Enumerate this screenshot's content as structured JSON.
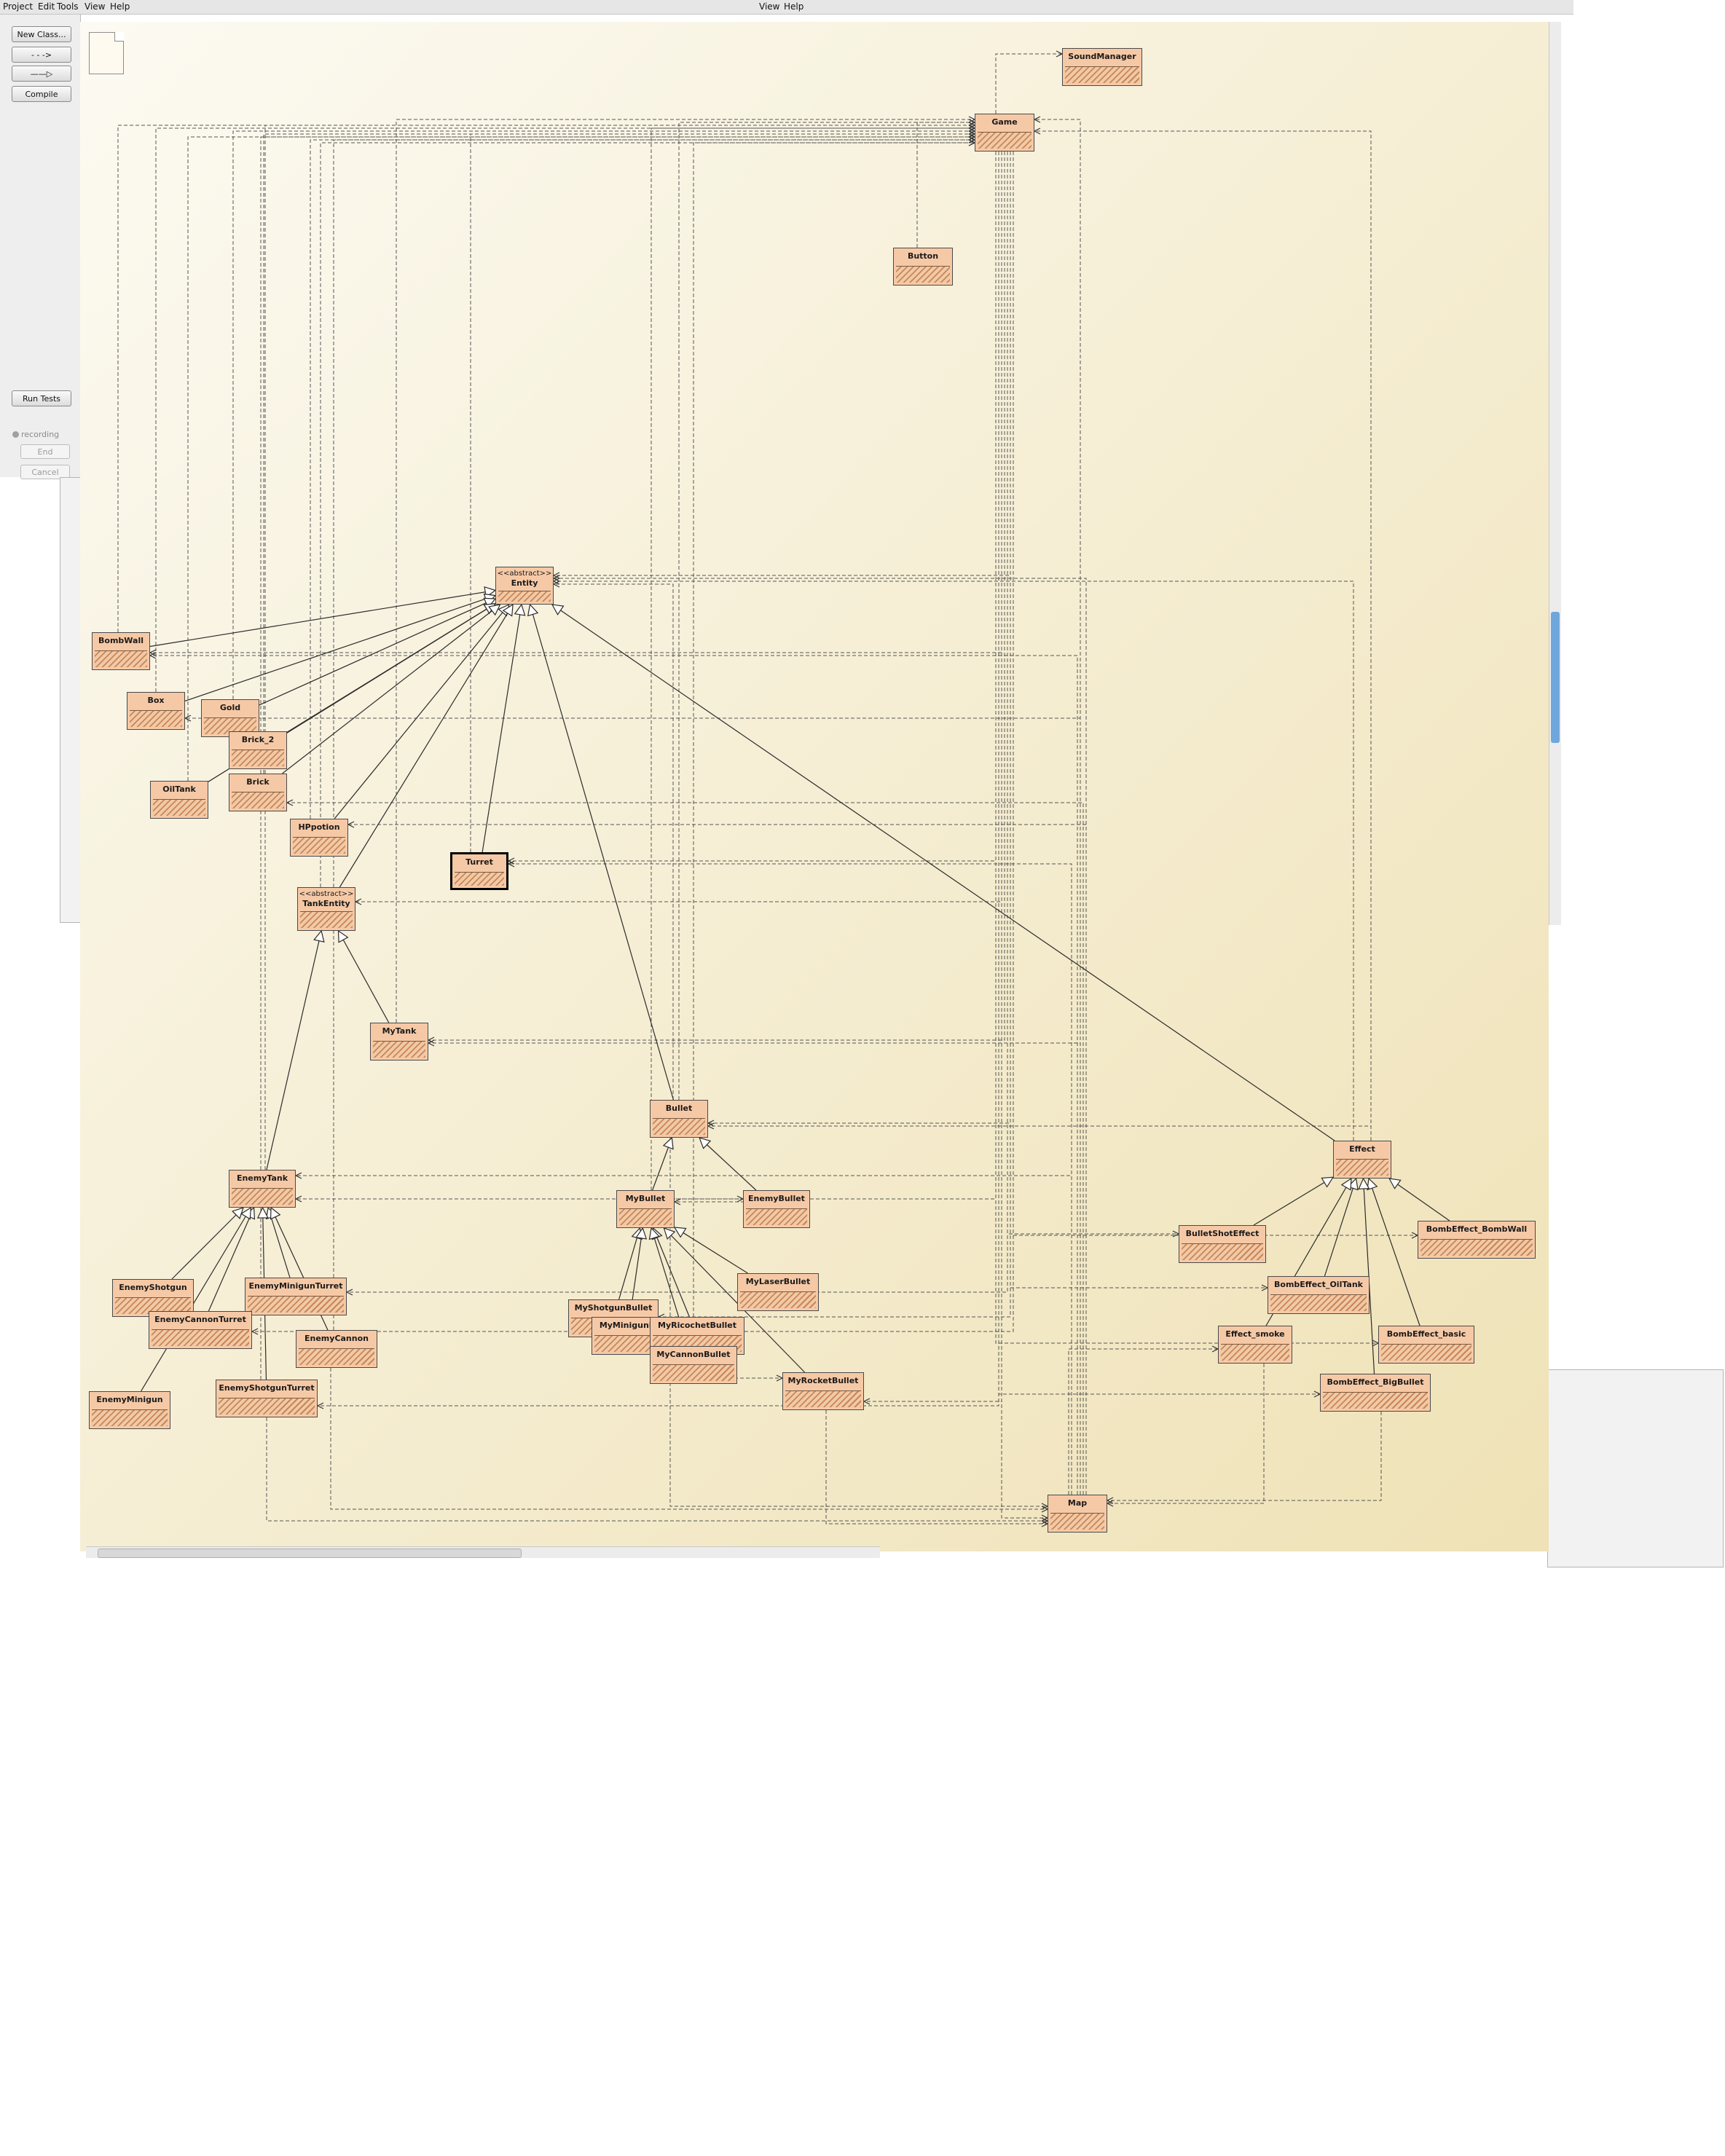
{
  "menu": {
    "items": [
      "Project",
      "Edit",
      "Tools",
      "View",
      "Help"
    ],
    "secondary_items": [
      "View",
      "Help"
    ]
  },
  "toolbar": {
    "new_class": "New Class...",
    "dependency_arrow": "- - ->",
    "inheritance_arrow": "——▷",
    "compile": "Compile",
    "run_tests": "Run Tests",
    "recording": "recording",
    "end": "End",
    "cancel": "Cancel"
  },
  "colors": {
    "class_fill": "#f6c9a6",
    "class_hatch": "#c8865a",
    "canvas_light": "#fbf8ee",
    "canvas_dark": "#efe2b5",
    "panel": "#eeeeee",
    "scrollbar_thumb": "#6fa7dd"
  },
  "classes": [
    {
      "id": "soundmanager",
      "name": "SoundManager"
    },
    {
      "id": "game",
      "name": "Game"
    },
    {
      "id": "button",
      "name": "Button"
    },
    {
      "id": "entity",
      "name": "Entity",
      "stereotype": "<<abstract>>"
    },
    {
      "id": "bombwall",
      "name": "BombWall"
    },
    {
      "id": "box",
      "name": "Box"
    },
    {
      "id": "gold",
      "name": "Gold"
    },
    {
      "id": "brick2",
      "name": "Brick_2"
    },
    {
      "id": "oiltank",
      "name": "OilTank"
    },
    {
      "id": "brick",
      "name": "Brick"
    },
    {
      "id": "hppotion",
      "name": "HPpotion"
    },
    {
      "id": "turret",
      "name": "Turret"
    },
    {
      "id": "tankentity",
      "name": "TankEntity",
      "stereotype": "<<abstract>>"
    },
    {
      "id": "mytank",
      "name": "MyTank"
    },
    {
      "id": "bullet",
      "name": "Bullet"
    },
    {
      "id": "enemytank",
      "name": "EnemyTank"
    },
    {
      "id": "mybullet",
      "name": "MyBullet"
    },
    {
      "id": "enemybullet",
      "name": "EnemyBullet"
    },
    {
      "id": "effect",
      "name": "Effect"
    },
    {
      "id": "bulletshoteffect",
      "name": "BulletShotEffect"
    },
    {
      "id": "bombeffect_bombwall",
      "name": "BombEffect_BombWall"
    },
    {
      "id": "enemyshotgun",
      "name": "EnemyShotgun"
    },
    {
      "id": "enemyminiguntruret",
      "name": "EnemyMinigunTurret"
    },
    {
      "id": "enemycannonturret",
      "name": "EnemyCannonTurret"
    },
    {
      "id": "enemycannon",
      "name": "EnemyCannon"
    },
    {
      "id": "myshotgunbullet",
      "name": "MyShotgunBullet"
    },
    {
      "id": "myminigunbullet",
      "name": "MyMinigunB"
    },
    {
      "id": "myricochetbullet",
      "name": "MyRicochetBullet"
    },
    {
      "id": "mylaserbullet",
      "name": "MyLaserBullet"
    },
    {
      "id": "mycannonbullet",
      "name": "MyCannonBullet"
    },
    {
      "id": "bombeffect_oiltank",
      "name": "BombEffect_OilTank"
    },
    {
      "id": "effect_smoke",
      "name": "Effect_smoke"
    },
    {
      "id": "bombeffect_basic",
      "name": "BombEffect_basic"
    },
    {
      "id": "enemyminigun",
      "name": "EnemyMinigun"
    },
    {
      "id": "enemyshotgunturret",
      "name": "EnemyShotgunTurret"
    },
    {
      "id": "myrocketbullet",
      "name": "MyRocketBullet"
    },
    {
      "id": "bombeffect_bigbullet",
      "name": "BombEffect_BigBullet"
    },
    {
      "id": "map",
      "name": "Map"
    }
  ],
  "inheritance": [
    [
      "bombwall",
      "entity"
    ],
    [
      "box",
      "entity"
    ],
    [
      "gold",
      "entity"
    ],
    [
      "brick2",
      "entity"
    ],
    [
      "oiltank",
      "entity"
    ],
    [
      "brick",
      "entity"
    ],
    [
      "hppotion",
      "entity"
    ],
    [
      "turret",
      "entity"
    ],
    [
      "tankentity",
      "entity"
    ],
    [
      "bullet",
      "entity"
    ],
    [
      "effect",
      "entity"
    ],
    [
      "mytank",
      "tankentity"
    ],
    [
      "enemytank",
      "tankentity"
    ],
    [
      "mybullet",
      "bullet"
    ],
    [
      "enemybullet",
      "bullet"
    ],
    [
      "enemyshotgun",
      "enemytank"
    ],
    [
      "enemyminiguntruret",
      "enemytank"
    ],
    [
      "enemycannonturret",
      "enemytank"
    ],
    [
      "enemycannon",
      "enemytank"
    ],
    [
      "enemyminigun",
      "enemytank"
    ],
    [
      "enemyshotgunturret",
      "enemytank"
    ],
    [
      "myshotgunbullet",
      "mybullet"
    ],
    [
      "myminigunbullet",
      "mybullet"
    ],
    [
      "myricochetbullet",
      "mybullet"
    ],
    [
      "mycannonbullet",
      "mybullet"
    ],
    [
      "myrocketbullet",
      "mybullet"
    ],
    [
      "mylaserbullet",
      "mybullet"
    ],
    [
      "bulletshoteffect",
      "effect"
    ],
    [
      "bombeffect_bombwall",
      "effect"
    ],
    [
      "bombeffect_oiltank",
      "effect"
    ],
    [
      "effect_smoke",
      "effect"
    ],
    [
      "bombeffect_basic",
      "effect"
    ],
    [
      "bombeffect_bigbullet",
      "effect"
    ]
  ],
  "dependencies": [
    [
      "game",
      "soundmanager"
    ],
    [
      "button",
      "game"
    ],
    [
      "bombwall",
      "game"
    ],
    [
      "box",
      "game"
    ],
    [
      "gold",
      "game"
    ],
    [
      "brick",
      "game"
    ],
    [
      "oiltank",
      "game"
    ],
    [
      "hppotion",
      "game"
    ],
    [
      "tankentity",
      "game"
    ],
    [
      "mytank",
      "game"
    ],
    [
      "bullet",
      "game"
    ],
    [
      "enemytank",
      "game"
    ],
    [
      "mybullet",
      "game"
    ],
    [
      "effect",
      "game"
    ],
    [
      "turret",
      "game"
    ],
    [
      "enemyshotgunturret",
      "game"
    ],
    [
      "enemycannon",
      "game"
    ],
    [
      "mycannonbullet",
      "game"
    ],
    [
      "map",
      "game"
    ],
    [
      "game",
      "entity"
    ],
    [
      "map",
      "entity"
    ],
    [
      "effect",
      "entity"
    ],
    [
      "bullet",
      "entity"
    ],
    [
      "game",
      "bombwall"
    ],
    [
      "map",
      "bombwall"
    ],
    [
      "map",
      "box"
    ],
    [
      "map",
      "brick"
    ],
    [
      "map",
      "hppotion"
    ],
    [
      "game",
      "turret"
    ],
    [
      "map",
      "turret"
    ],
    [
      "game",
      "tankentity"
    ],
    [
      "game",
      "mytank"
    ],
    [
      "map",
      "mytank"
    ],
    [
      "game",
      "bullet"
    ],
    [
      "effect",
      "bullet"
    ],
    [
      "game",
      "enemytank"
    ],
    [
      "map",
      "enemytank"
    ],
    [
      "mybullet",
      "enemybullet"
    ],
    [
      "enemybullet",
      "mybullet"
    ],
    [
      "game",
      "enemyminiguntruret"
    ],
    [
      "game",
      "myshotgunbullet"
    ],
    [
      "game",
      "enemycannonturret"
    ],
    [
      "map",
      "effect_smoke"
    ],
    [
      "game",
      "enemyshotgunturret"
    ],
    [
      "game",
      "myrocketbullet"
    ],
    [
      "mycannonbullet",
      "myrocketbullet"
    ],
    [
      "game",
      "bulletshoteffect"
    ],
    [
      "game",
      "bombeffect_oiltank"
    ],
    [
      "game",
      "bombeffect_bombwall"
    ],
    [
      "game",
      "bombeffect_basic"
    ],
    [
      "game",
      "bombeffect_bigbullet"
    ],
    [
      "game",
      "map"
    ],
    [
      "enemyshotgunturret",
      "map"
    ],
    [
      "myrocketbullet",
      "map"
    ],
    [
      "bombeffect_bigbullet",
      "map"
    ],
    [
      "effect_smoke",
      "map"
    ],
    [
      "bullet",
      "map"
    ],
    [
      "enemycannon",
      "map"
    ]
  ]
}
